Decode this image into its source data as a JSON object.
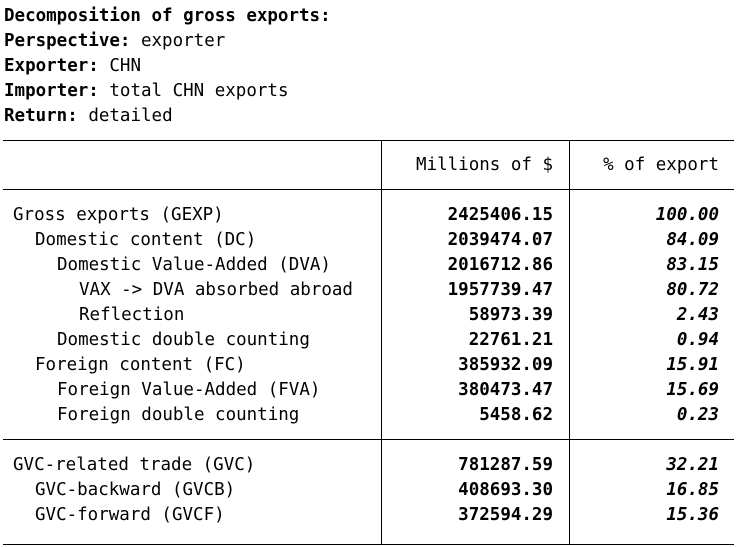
{
  "header": {
    "title": "Decomposition of gross exports:",
    "perspective_label": "Perspective:",
    "perspective_value": "exporter",
    "exporter_label": "Exporter:",
    "exporter_value": "CHN",
    "importer_label": "Importer:",
    "importer_value": "total CHN exports",
    "return_label": "Return:",
    "return_value": "detailed"
  },
  "table": {
    "col_millions": "Millions of $",
    "col_pct": "% of export",
    "rows_top": [
      {
        "name": "Gross exports (GEXP)",
        "value": "2425406.15",
        "pct": "100.00",
        "indent": 0
      },
      {
        "name": "Domestic content (DC)",
        "value": "2039474.07",
        "pct": "84.09",
        "indent": 1
      },
      {
        "name": "Domestic Value-Added (DVA)",
        "value": "2016712.86",
        "pct": "83.15",
        "indent": 2
      },
      {
        "name": "VAX -> DVA absorbed abroad",
        "value": "1957739.47",
        "pct": "80.72",
        "indent": 3
      },
      {
        "name": "Reflection",
        "value": "58973.39",
        "pct": "2.43",
        "indent": 3
      },
      {
        "name": "Domestic double counting",
        "value": "22761.21",
        "pct": "0.94",
        "indent": 2
      },
      {
        "name": "Foreign content (FC)",
        "value": "385932.09",
        "pct": "15.91",
        "indent": 1
      },
      {
        "name": "Foreign Value-Added (FVA)",
        "value": "380473.47",
        "pct": "15.69",
        "indent": 2
      },
      {
        "name": "Foreign double counting",
        "value": "5458.62",
        "pct": "0.23",
        "indent": 2
      }
    ],
    "rows_bottom": [
      {
        "name": "GVC-related trade (GVC)",
        "value": "781287.59",
        "pct": "32.21",
        "indent": 0
      },
      {
        "name": "GVC-backward (GVCB)",
        "value": "408693.30",
        "pct": "16.85",
        "indent": 1
      },
      {
        "name": "GVC-forward (GVCF)",
        "value": "372594.29",
        "pct": "15.36",
        "indent": 1
      }
    ]
  }
}
